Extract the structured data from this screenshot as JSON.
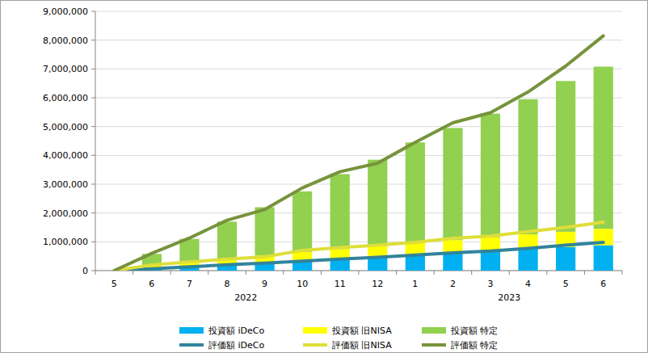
{
  "chart_data": {
    "type": "bar",
    "stacked": true,
    "grid": true,
    "legend": "bottom",
    "categories": [
      "5",
      "6",
      "7",
      "8",
      "9",
      "10",
      "11",
      "12",
      "1",
      "2",
      "3",
      "4",
      "5",
      "6"
    ],
    "annotations": [
      "2022",
      "2023"
    ],
    "ylim": [
      0,
      9000000
    ],
    "yticks": [
      0,
      {
        "value": 1000000,
        "label": "1,000,000"
      },
      {
        "value": 2000000,
        "label": "2,000,000"
      },
      {
        "value": 3000000,
        "label": "3,000,000"
      },
      {
        "value": 4000000,
        "label": "4,000,000"
      },
      {
        "value": 5000000,
        "label": "5,000,000"
      },
      {
        "value": 6000000,
        "label": "6,000,000"
      },
      {
        "value": 7000000,
        "label": "7,000,000"
      },
      {
        "value": 8000000,
        "label": "8,000,000"
      },
      {
        "value": 9000000,
        "label": "9,000,000"
      }
    ],
    "series": [
      {
        "name": "投資額 iDeCo",
        "type": "bar",
        "color": "#00b0f0",
        "values": [
          0,
          70000,
          140000,
          210000,
          280000,
          350000,
          420000,
          490000,
          560000,
          630000,
          700000,
          760000,
          820000,
          880000
        ]
      },
      {
        "name": "投資額 旧NISA",
        "type": "bar",
        "color": "#ffff00",
        "values": [
          0,
          100000,
          150000,
          200000,
          250000,
          300000,
          330000,
          360000,
          400000,
          430000,
          460000,
          500000,
          530000,
          570000
        ]
      },
      {
        "name": "投資額 特定",
        "type": "bar",
        "color": "#92d050",
        "values": [
          0,
          410000,
          810000,
          1290000,
          1670000,
          2100000,
          2600000,
          3000000,
          3490000,
          3890000,
          4290000,
          4690000,
          5230000,
          5630000
        ]
      },
      {
        "name": "評価額 iDeCo",
        "type": "line",
        "color": "#31849b",
        "values": [
          0,
          60000,
          130000,
          200000,
          260000,
          330000,
          400000,
          460000,
          540000,
          620000,
          680000,
          770000,
          880000,
          980000
        ]
      },
      {
        "name": "評価額 旧NISA",
        "type": "line",
        "color": "#dede3a",
        "values": [
          0,
          140000,
          170000,
          200000,
          220000,
          370000,
          400000,
          420000,
          440000,
          500000,
          520000,
          580000,
          620000,
          700000
        ]
      },
      {
        "name": "評価額 特定",
        "type": "line",
        "color": "#77933c",
        "values": [
          0,
          400000,
          830000,
          1350000,
          1640000,
          2170000,
          2630000,
          2850000,
          3470000,
          4010000,
          4280000,
          4850000,
          5600000,
          6470000
        ]
      }
    ]
  }
}
